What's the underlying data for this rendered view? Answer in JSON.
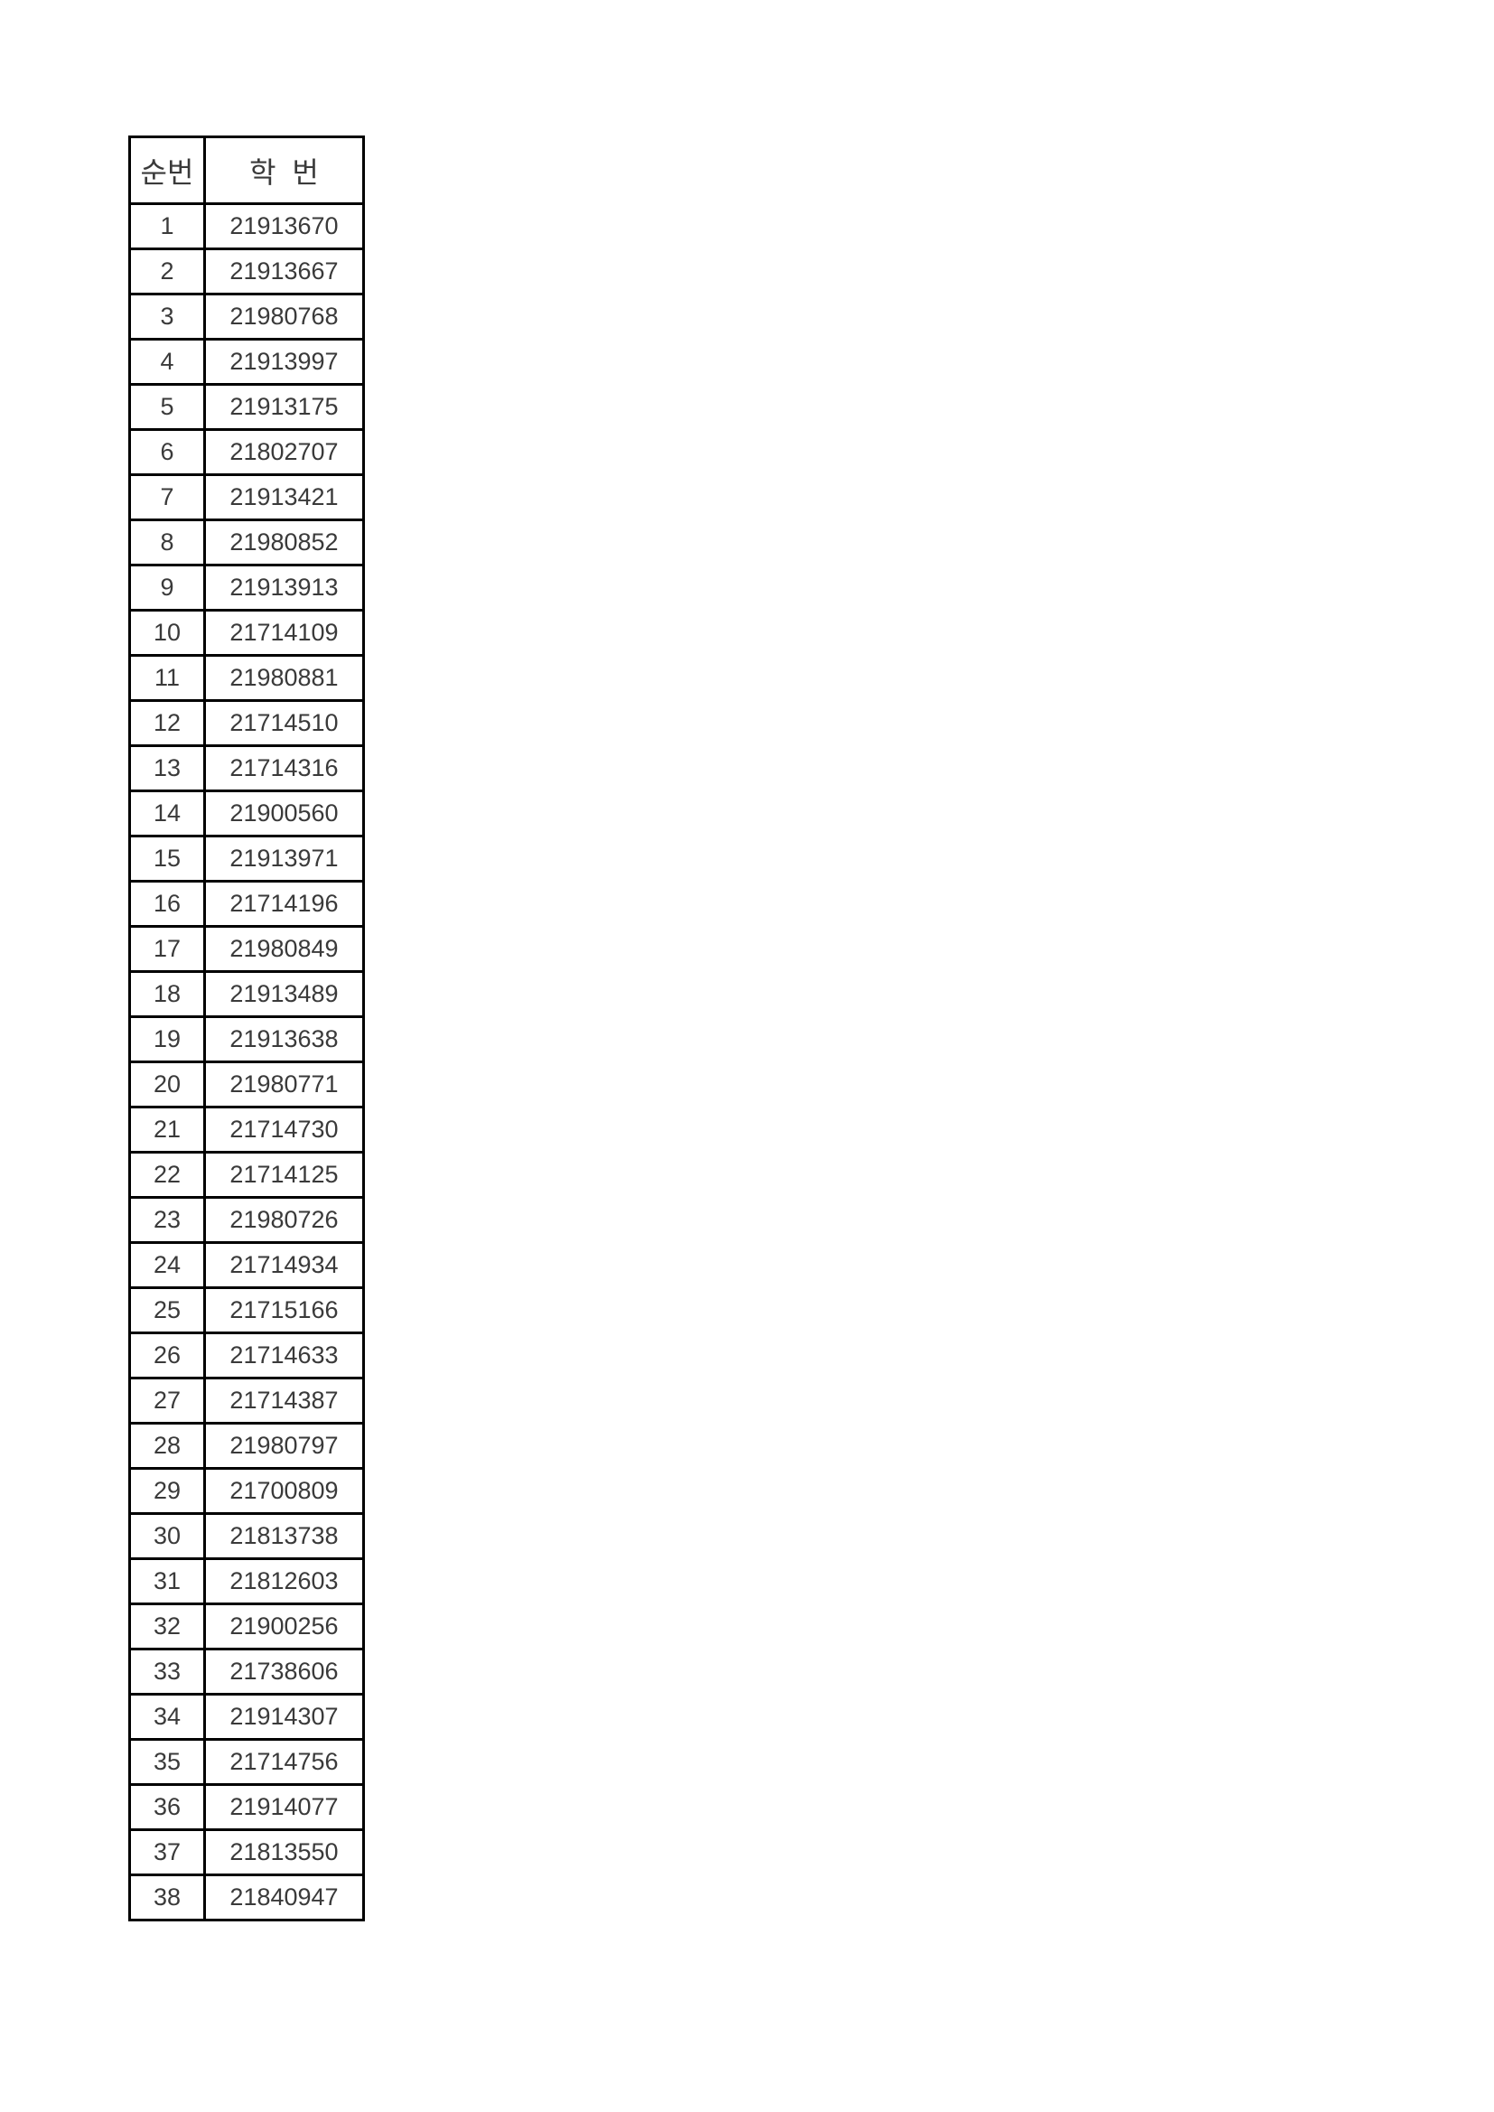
{
  "table": {
    "headers": {
      "no": "순번",
      "id": "학  번"
    },
    "rows": [
      {
        "no": "1",
        "id": "21913670"
      },
      {
        "no": "2",
        "id": "21913667"
      },
      {
        "no": "3",
        "id": "21980768"
      },
      {
        "no": "4",
        "id": "21913997"
      },
      {
        "no": "5",
        "id": "21913175"
      },
      {
        "no": "6",
        "id": "21802707"
      },
      {
        "no": "7",
        "id": "21913421"
      },
      {
        "no": "8",
        "id": "21980852"
      },
      {
        "no": "9",
        "id": "21913913"
      },
      {
        "no": "10",
        "id": "21714109"
      },
      {
        "no": "11",
        "id": "21980881"
      },
      {
        "no": "12",
        "id": "21714510"
      },
      {
        "no": "13",
        "id": "21714316"
      },
      {
        "no": "14",
        "id": "21900560"
      },
      {
        "no": "15",
        "id": "21913971"
      },
      {
        "no": "16",
        "id": "21714196"
      },
      {
        "no": "17",
        "id": "21980849"
      },
      {
        "no": "18",
        "id": "21913489"
      },
      {
        "no": "19",
        "id": "21913638"
      },
      {
        "no": "20",
        "id": "21980771"
      },
      {
        "no": "21",
        "id": "21714730"
      },
      {
        "no": "22",
        "id": "21714125"
      },
      {
        "no": "23",
        "id": "21980726"
      },
      {
        "no": "24",
        "id": "21714934"
      },
      {
        "no": "25",
        "id": "21715166"
      },
      {
        "no": "26",
        "id": "21714633"
      },
      {
        "no": "27",
        "id": "21714387"
      },
      {
        "no": "28",
        "id": "21980797"
      },
      {
        "no": "29",
        "id": "21700809"
      },
      {
        "no": "30",
        "id": "21813738"
      },
      {
        "no": "31",
        "id": "21812603"
      },
      {
        "no": "32",
        "id": "21900256"
      },
      {
        "no": "33",
        "id": "21738606"
      },
      {
        "no": "34",
        "id": "21914307"
      },
      {
        "no": "35",
        "id": "21714756"
      },
      {
        "no": "36",
        "id": "21914077"
      },
      {
        "no": "37",
        "id": "21813550"
      },
      {
        "no": "38",
        "id": "21840947"
      }
    ]
  }
}
